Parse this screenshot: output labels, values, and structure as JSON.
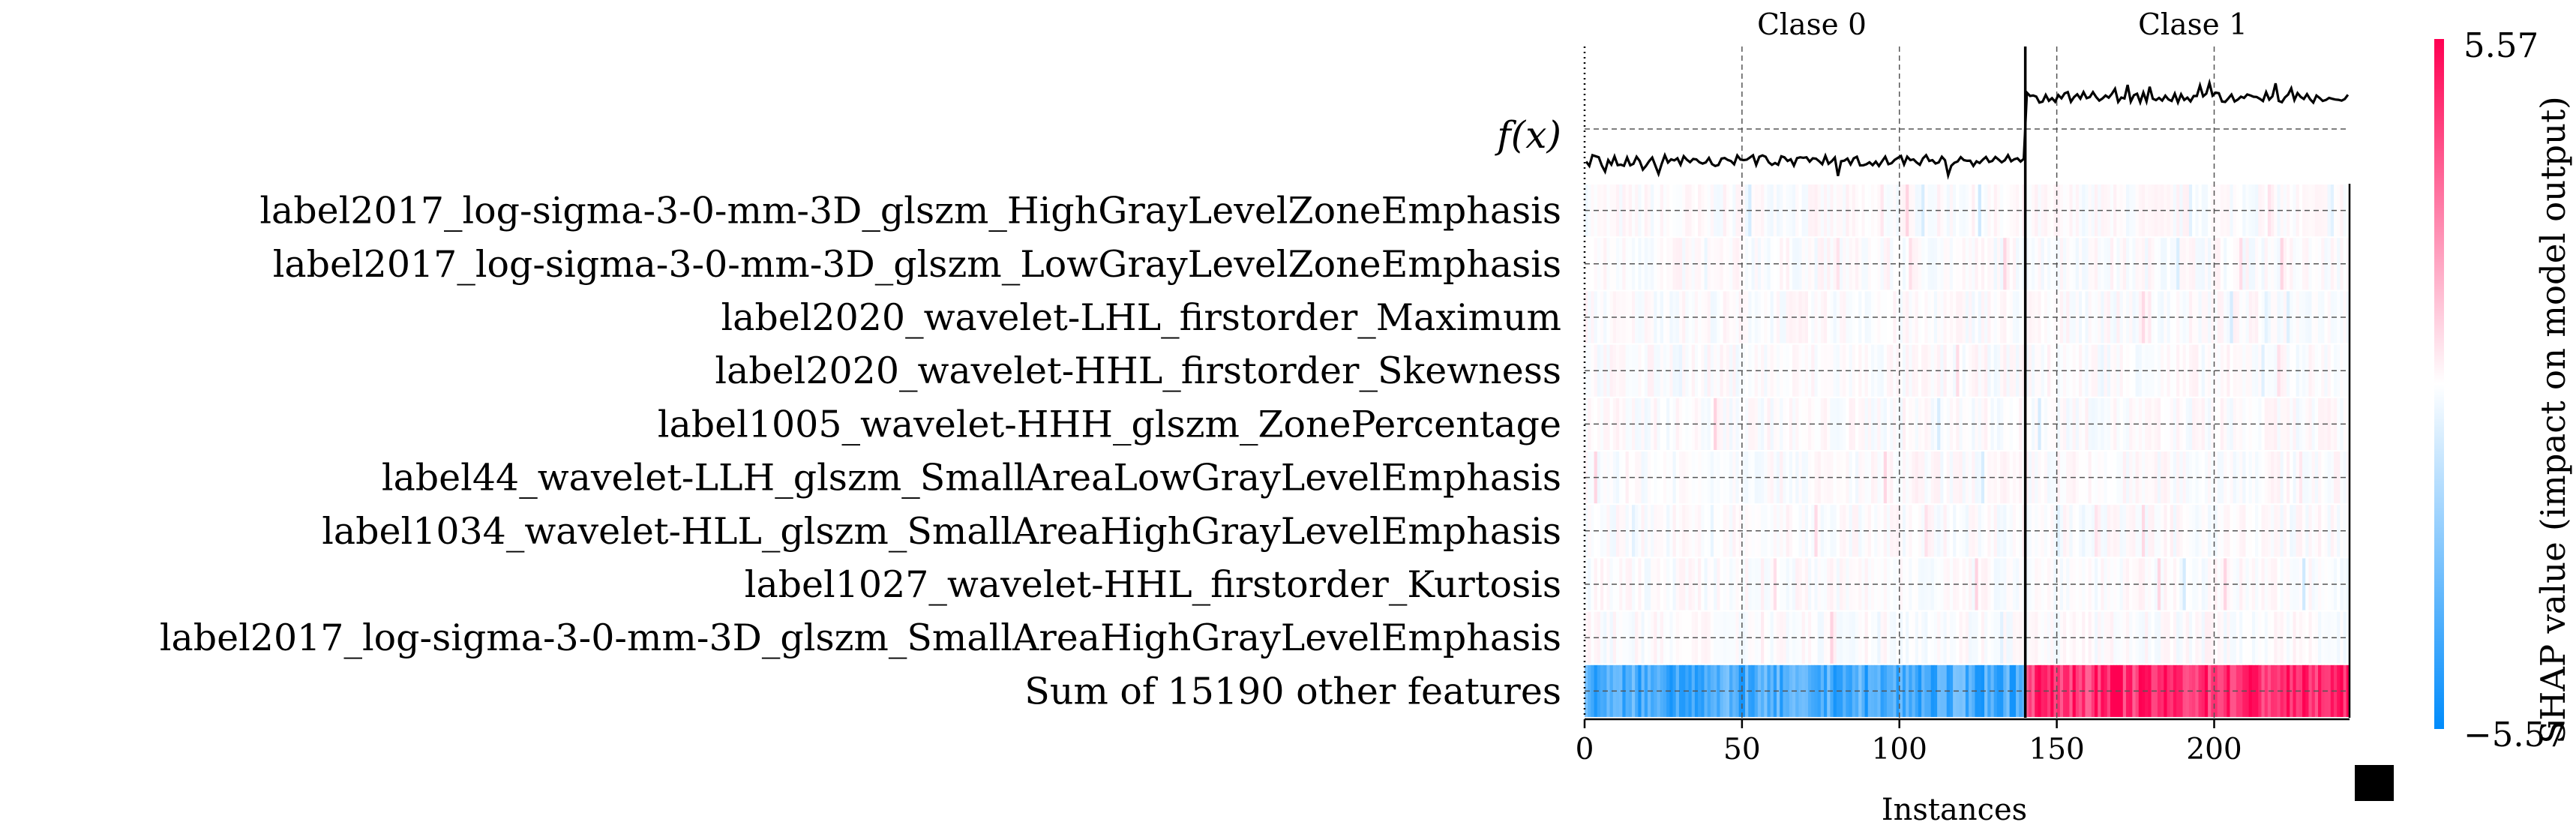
{
  "chart_data": {
    "type": "heatmap",
    "title": "",
    "group_labels": [
      "Clase 0",
      "Clase 1"
    ],
    "group_boundary": 140,
    "n_instances": 243,
    "output_label": "f(x)",
    "features": [
      "label2017_log-sigma-3-0-mm-3D_glszm_HighGrayLevelZoneEmphasis",
      "label2017_log-sigma-3-0-mm-3D_glszm_LowGrayLevelZoneEmphasis",
      "label2020_wavelet-LHL_firstorder_Maximum",
      "label2020_wavelet-HHL_firstorder_Skewness",
      "label1005_wavelet-HHH_glszm_ZonePercentage",
      "label44_wavelet-LLH_glszm_SmallAreaLowGrayLevelEmphasis",
      "label1034_wavelet-HLL_glszm_SmallAreaHighGrayLevelEmphasis",
      "label1027_wavelet-HHL_firstorder_Kurtosis",
      "label2017_log-sigma-3-0-mm-3D_glszm_SmallAreaHighGrayLevelEmphasis",
      "Sum of 15190 other features"
    ],
    "xlabel": "Instances",
    "x_ticks": [
      0,
      50,
      100,
      150,
      200
    ],
    "xlim": [
      0,
      243
    ],
    "colorbar": {
      "label": "SHAP value (impact on model output)",
      "max_label": "5.57",
      "min_label": "−5.57",
      "range": [
        -5.57,
        5.57
      ],
      "low_color": "#008bfb",
      "mid_color": "#ffffff",
      "high_color": "#ff0052"
    },
    "f_x_mean": {
      "clase_0": -1.0,
      "clase_1": 1.0
    },
    "other_features_shap": {
      "clase_0": -4.0,
      "clase_1": 4.6
    },
    "grid": true
  }
}
